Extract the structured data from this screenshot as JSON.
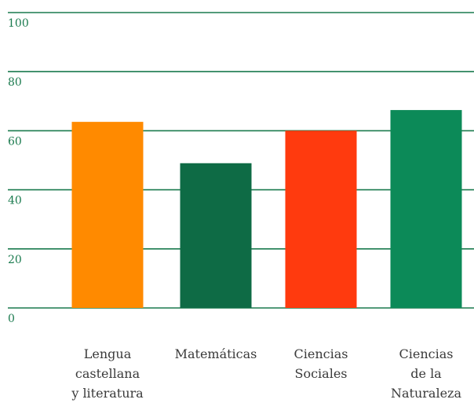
{
  "chart_data": {
    "type": "bar",
    "title": "",
    "xlabel": "",
    "ylabel": "",
    "ylim": [
      0,
      100
    ],
    "yticks": [
      0,
      20,
      40,
      60,
      80,
      100
    ],
    "grid": true,
    "categories": [
      [
        "Lengua",
        "castellana",
        "y literatura"
      ],
      [
        "Matemáticas"
      ],
      [
        "Ciencias",
        "Sociales"
      ],
      [
        "Ciencias",
        "de la",
        "Naturaleza"
      ]
    ],
    "values": [
      63,
      49,
      60,
      67
    ],
    "colors": [
      "#ff8a00",
      "#0e6b45",
      "#ff3a0e",
      "#0c8a58"
    ],
    "grid_color": "#1a7a4e"
  }
}
